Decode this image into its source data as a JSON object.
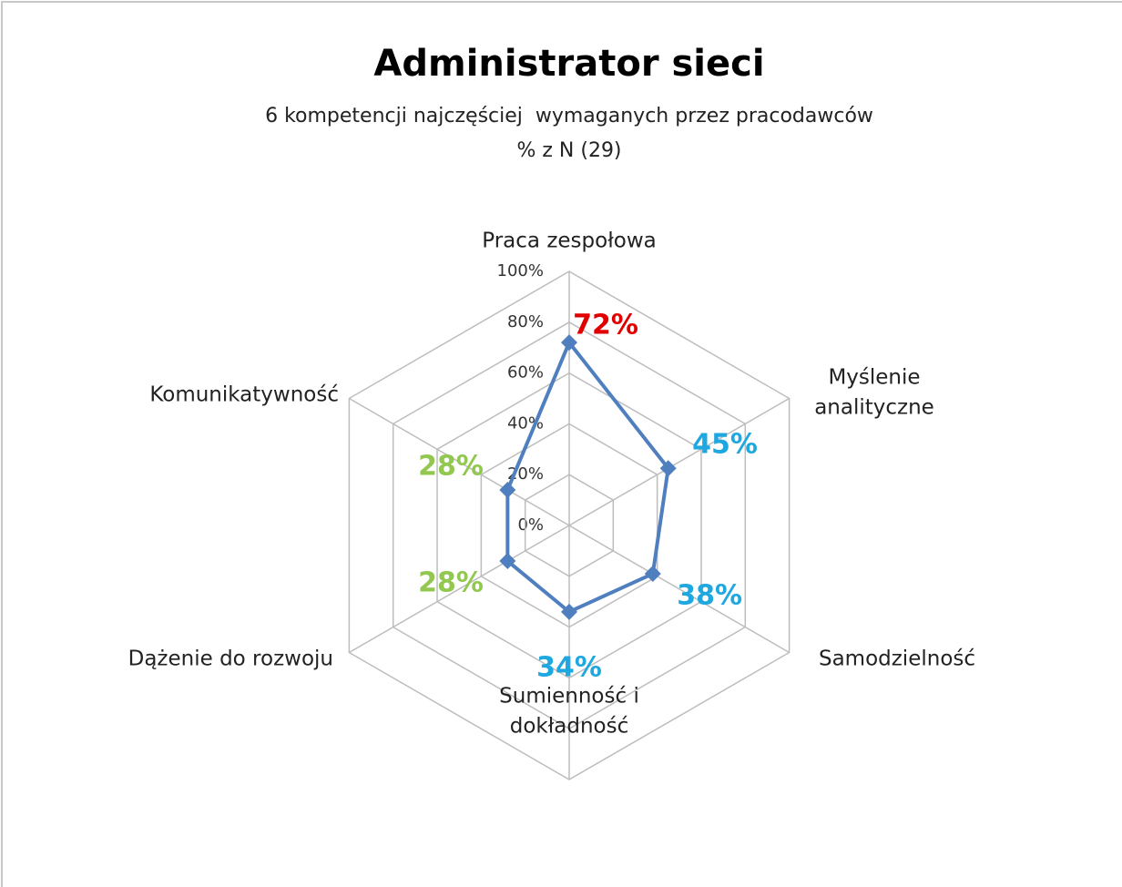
{
  "chart_data": {
    "type": "radar",
    "title": "Administrator sieci",
    "subtitle": "6 kompetencji najczęściej  wymaganych przez pracodawców",
    "note": "% z N (29)",
    "categories": [
      "Praca zespołowa",
      "Myślenie\nanalityczne",
      "Samodzielność",
      "Sumienność i\ndokładność",
      "Dążenie do rozwoju",
      "Komunikatywność"
    ],
    "values": [
      72,
      45,
      38,
      34,
      28,
      28
    ],
    "value_labels": [
      "72%",
      "45%",
      "38%",
      "34%",
      "28%",
      "28%"
    ],
    "value_label_colors": [
      "#e00000",
      "#1fa8e0",
      "#1fa8e0",
      "#1fa8e0",
      "#92c84f",
      "#92c84f"
    ],
    "color": "#4f7fbf",
    "ylim": [
      0,
      100
    ],
    "yticks": [
      {
        "value": 0,
        "label": "0%"
      },
      {
        "value": 20,
        "label": "20%"
      },
      {
        "value": 40,
        "label": "40%"
      },
      {
        "value": 60,
        "label": "60%"
      },
      {
        "value": 80,
        "label": "80%"
      },
      {
        "value": 100,
        "label": "100%"
      }
    ],
    "grid": true
  }
}
